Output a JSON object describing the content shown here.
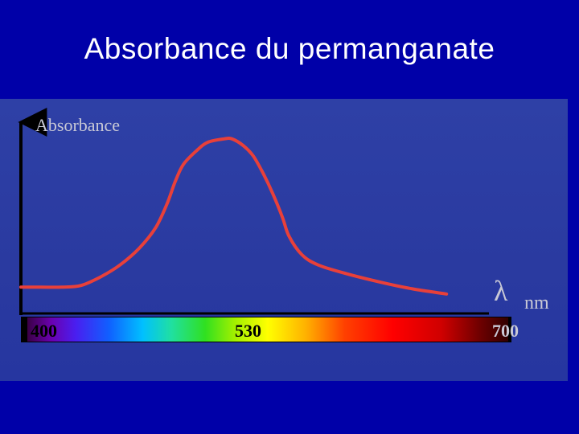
{
  "slide": {
    "title": "Absorbance du permanganate"
  },
  "colors": {
    "background": "#0000a8",
    "panel": "#2c3ca4",
    "curve": "#e8403a",
    "axis": "#000000",
    "label": "#c9c9d6"
  },
  "chart_data": {
    "type": "line",
    "title": "",
    "ylabel": "Absorbance",
    "xlabel_symbol": "λ",
    "xlabel_unit": "nm",
    "xlim": [
      400,
      700
    ],
    "ylim": [
      0,
      1
    ],
    "x_ticks": [
      "400",
      "530",
      "700"
    ],
    "y_ticks": [],
    "grid": false,
    "legend": "none",
    "x_axis_visual": "visible spectrum gradient bar (violet → blue → green → yellow → red)",
    "series": [
      {
        "x": [
          400,
          412,
          425,
          437,
          449,
          461,
          473,
          483,
          490,
          495,
          500,
          508,
          515,
          525,
          530,
          537,
          543,
          549,
          555,
          561,
          565,
          573,
          583,
          600,
          621,
          641,
          662
        ],
        "y": [
          0.06,
          0.06,
          0.06,
          0.07,
          0.12,
          0.19,
          0.29,
          0.41,
          0.55,
          0.68,
          0.78,
          0.86,
          0.91,
          0.93,
          0.93,
          0.89,
          0.83,
          0.73,
          0.61,
          0.47,
          0.36,
          0.25,
          0.19,
          0.14,
          0.09,
          0.05,
          0.02
        ]
      }
    ]
  }
}
